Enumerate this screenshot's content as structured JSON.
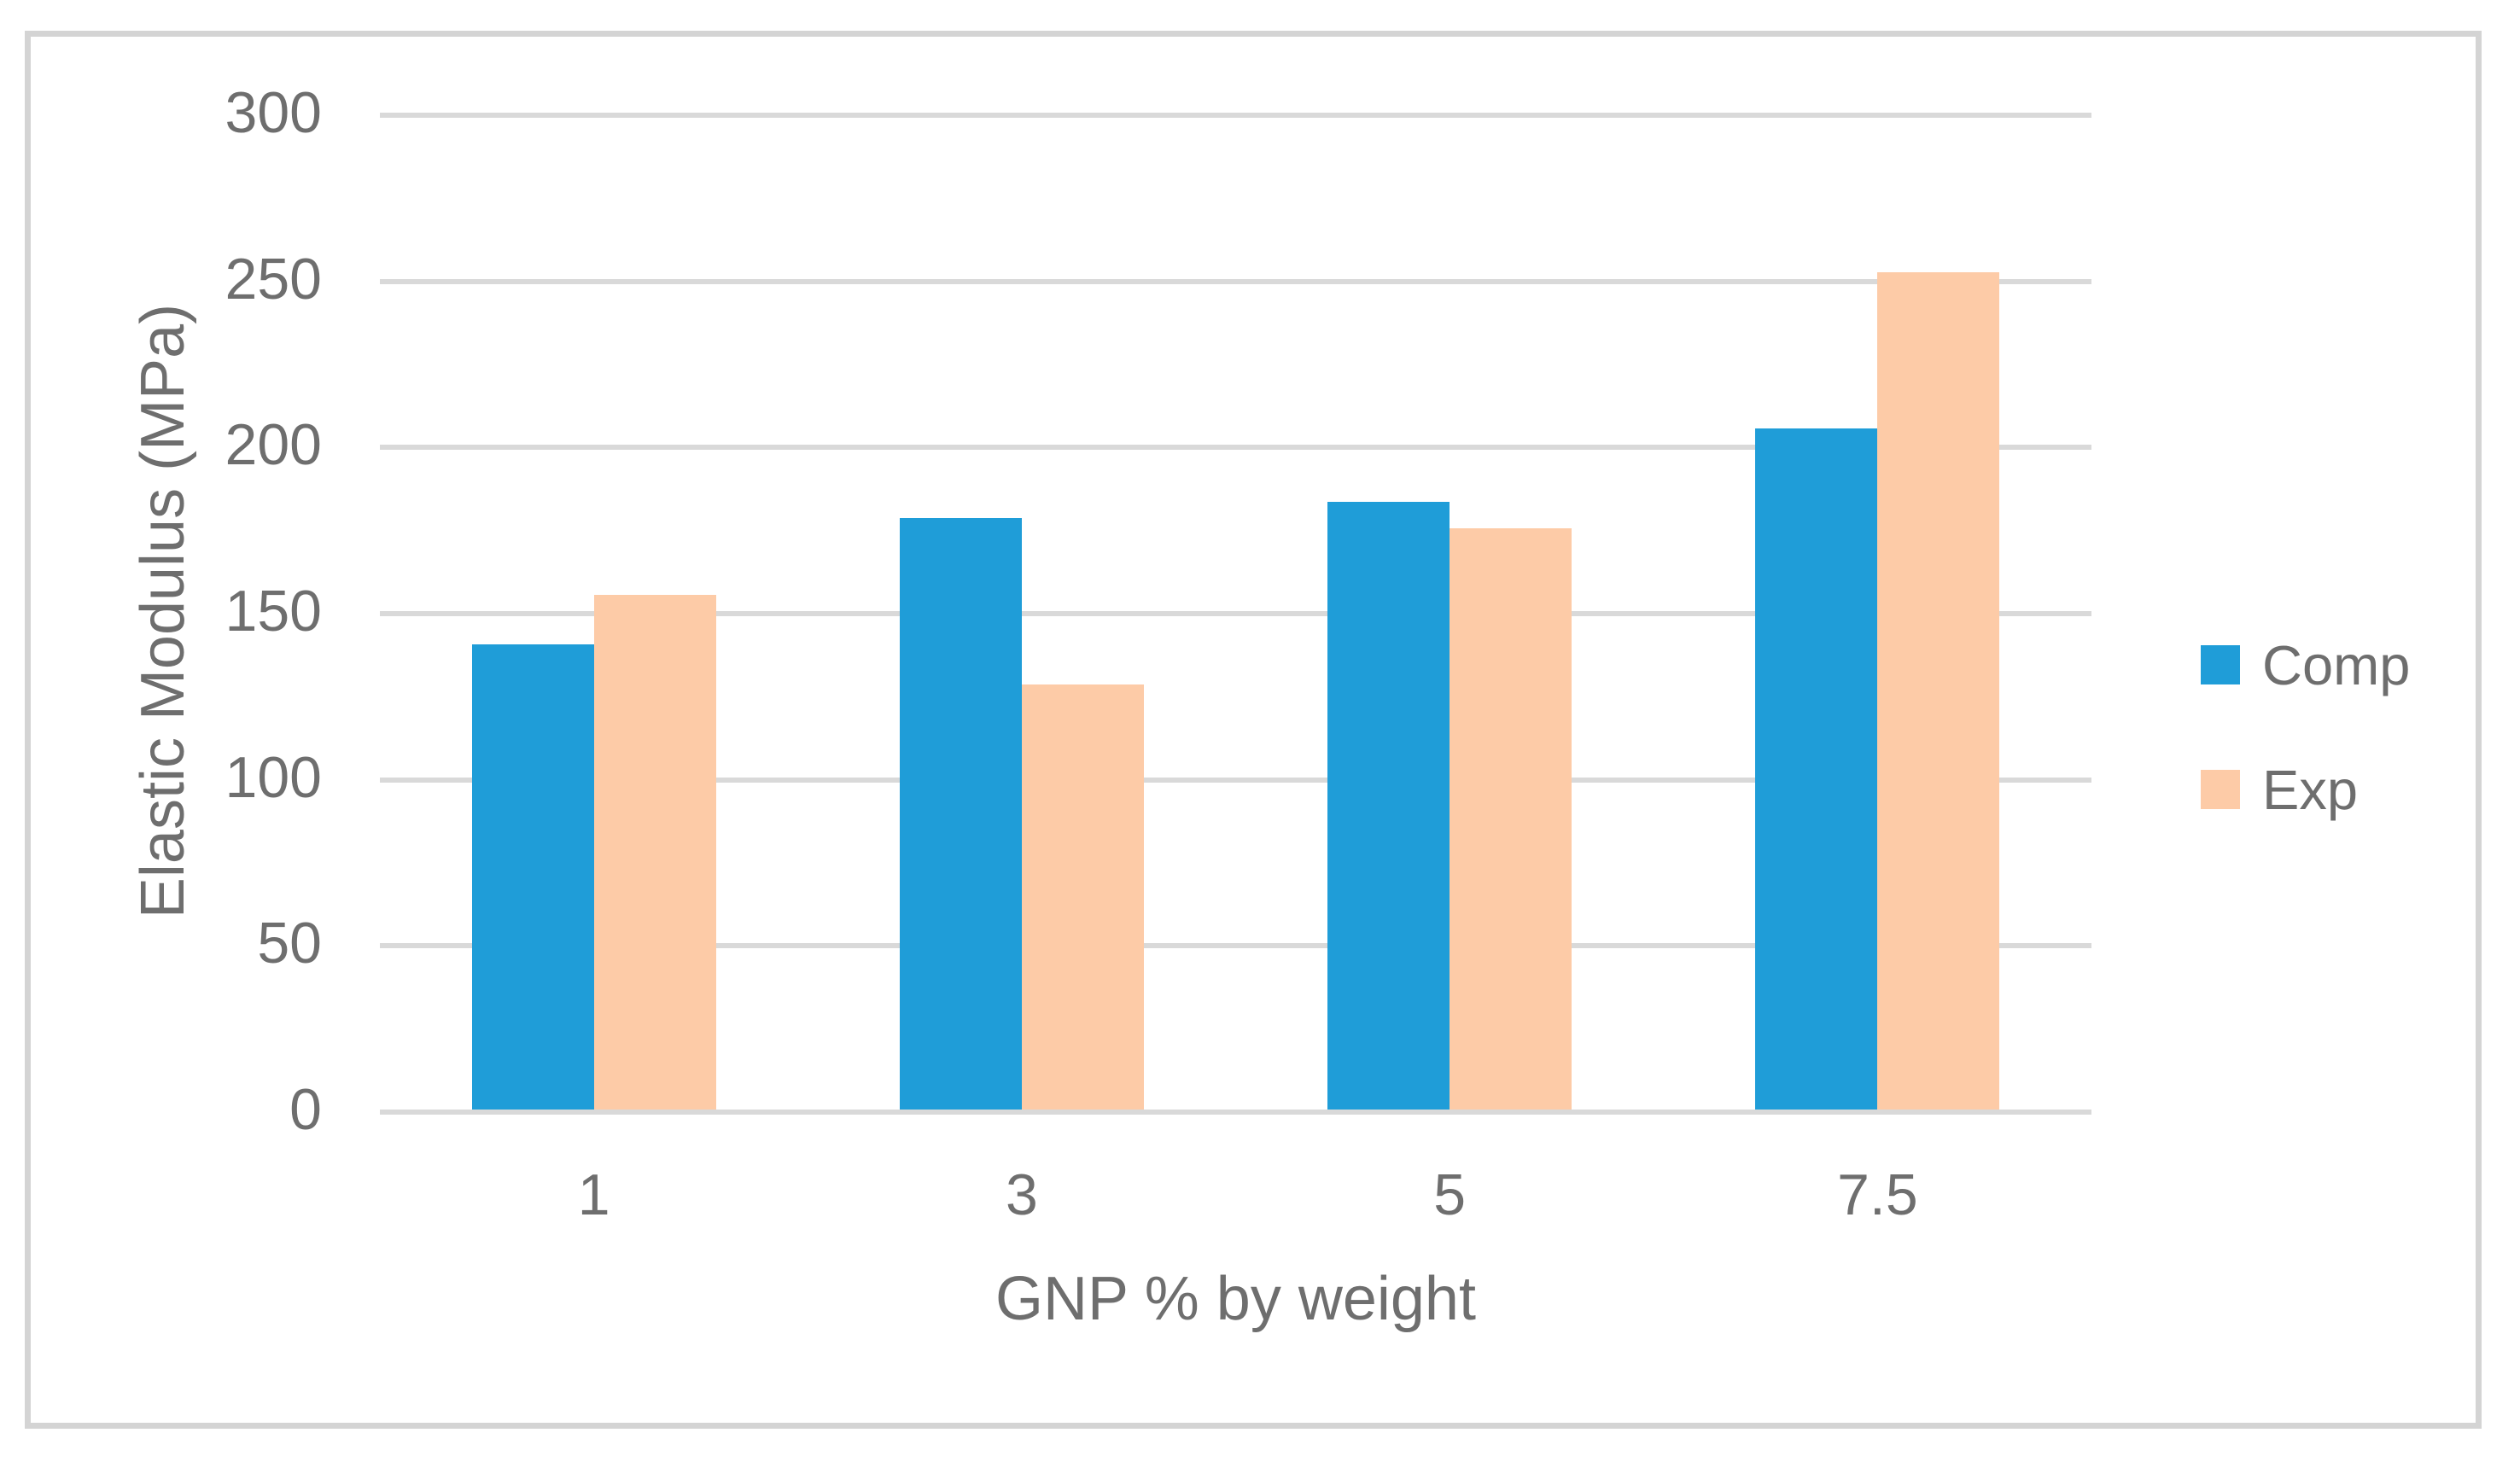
{
  "chart_data": {
    "type": "bar",
    "categories": [
      "1",
      "3",
      "5",
      "7.5"
    ],
    "series": [
      {
        "name": "Comp",
        "color": "#1F9DD8",
        "values": [
          140,
          178,
          183,
          205
        ]
      },
      {
        "name": "Exp",
        "color": "#FDCBA7",
        "values": [
          155,
          128,
          175,
          252
        ]
      }
    ],
    "title": "",
    "xlabel": "GNP % by weight",
    "ylabel": "Elastic Modulus (MPa)",
    "ylim": [
      0,
      300
    ],
    "yticks": [
      0,
      50,
      100,
      150,
      200,
      250,
      300
    ],
    "grid": true,
    "legend_position": "right",
    "colors": {
      "gridline": "#D9D9D9",
      "text": "#6E6E6E",
      "frame_border": "#D4D4D4",
      "background": "#FFFFFF"
    }
  }
}
